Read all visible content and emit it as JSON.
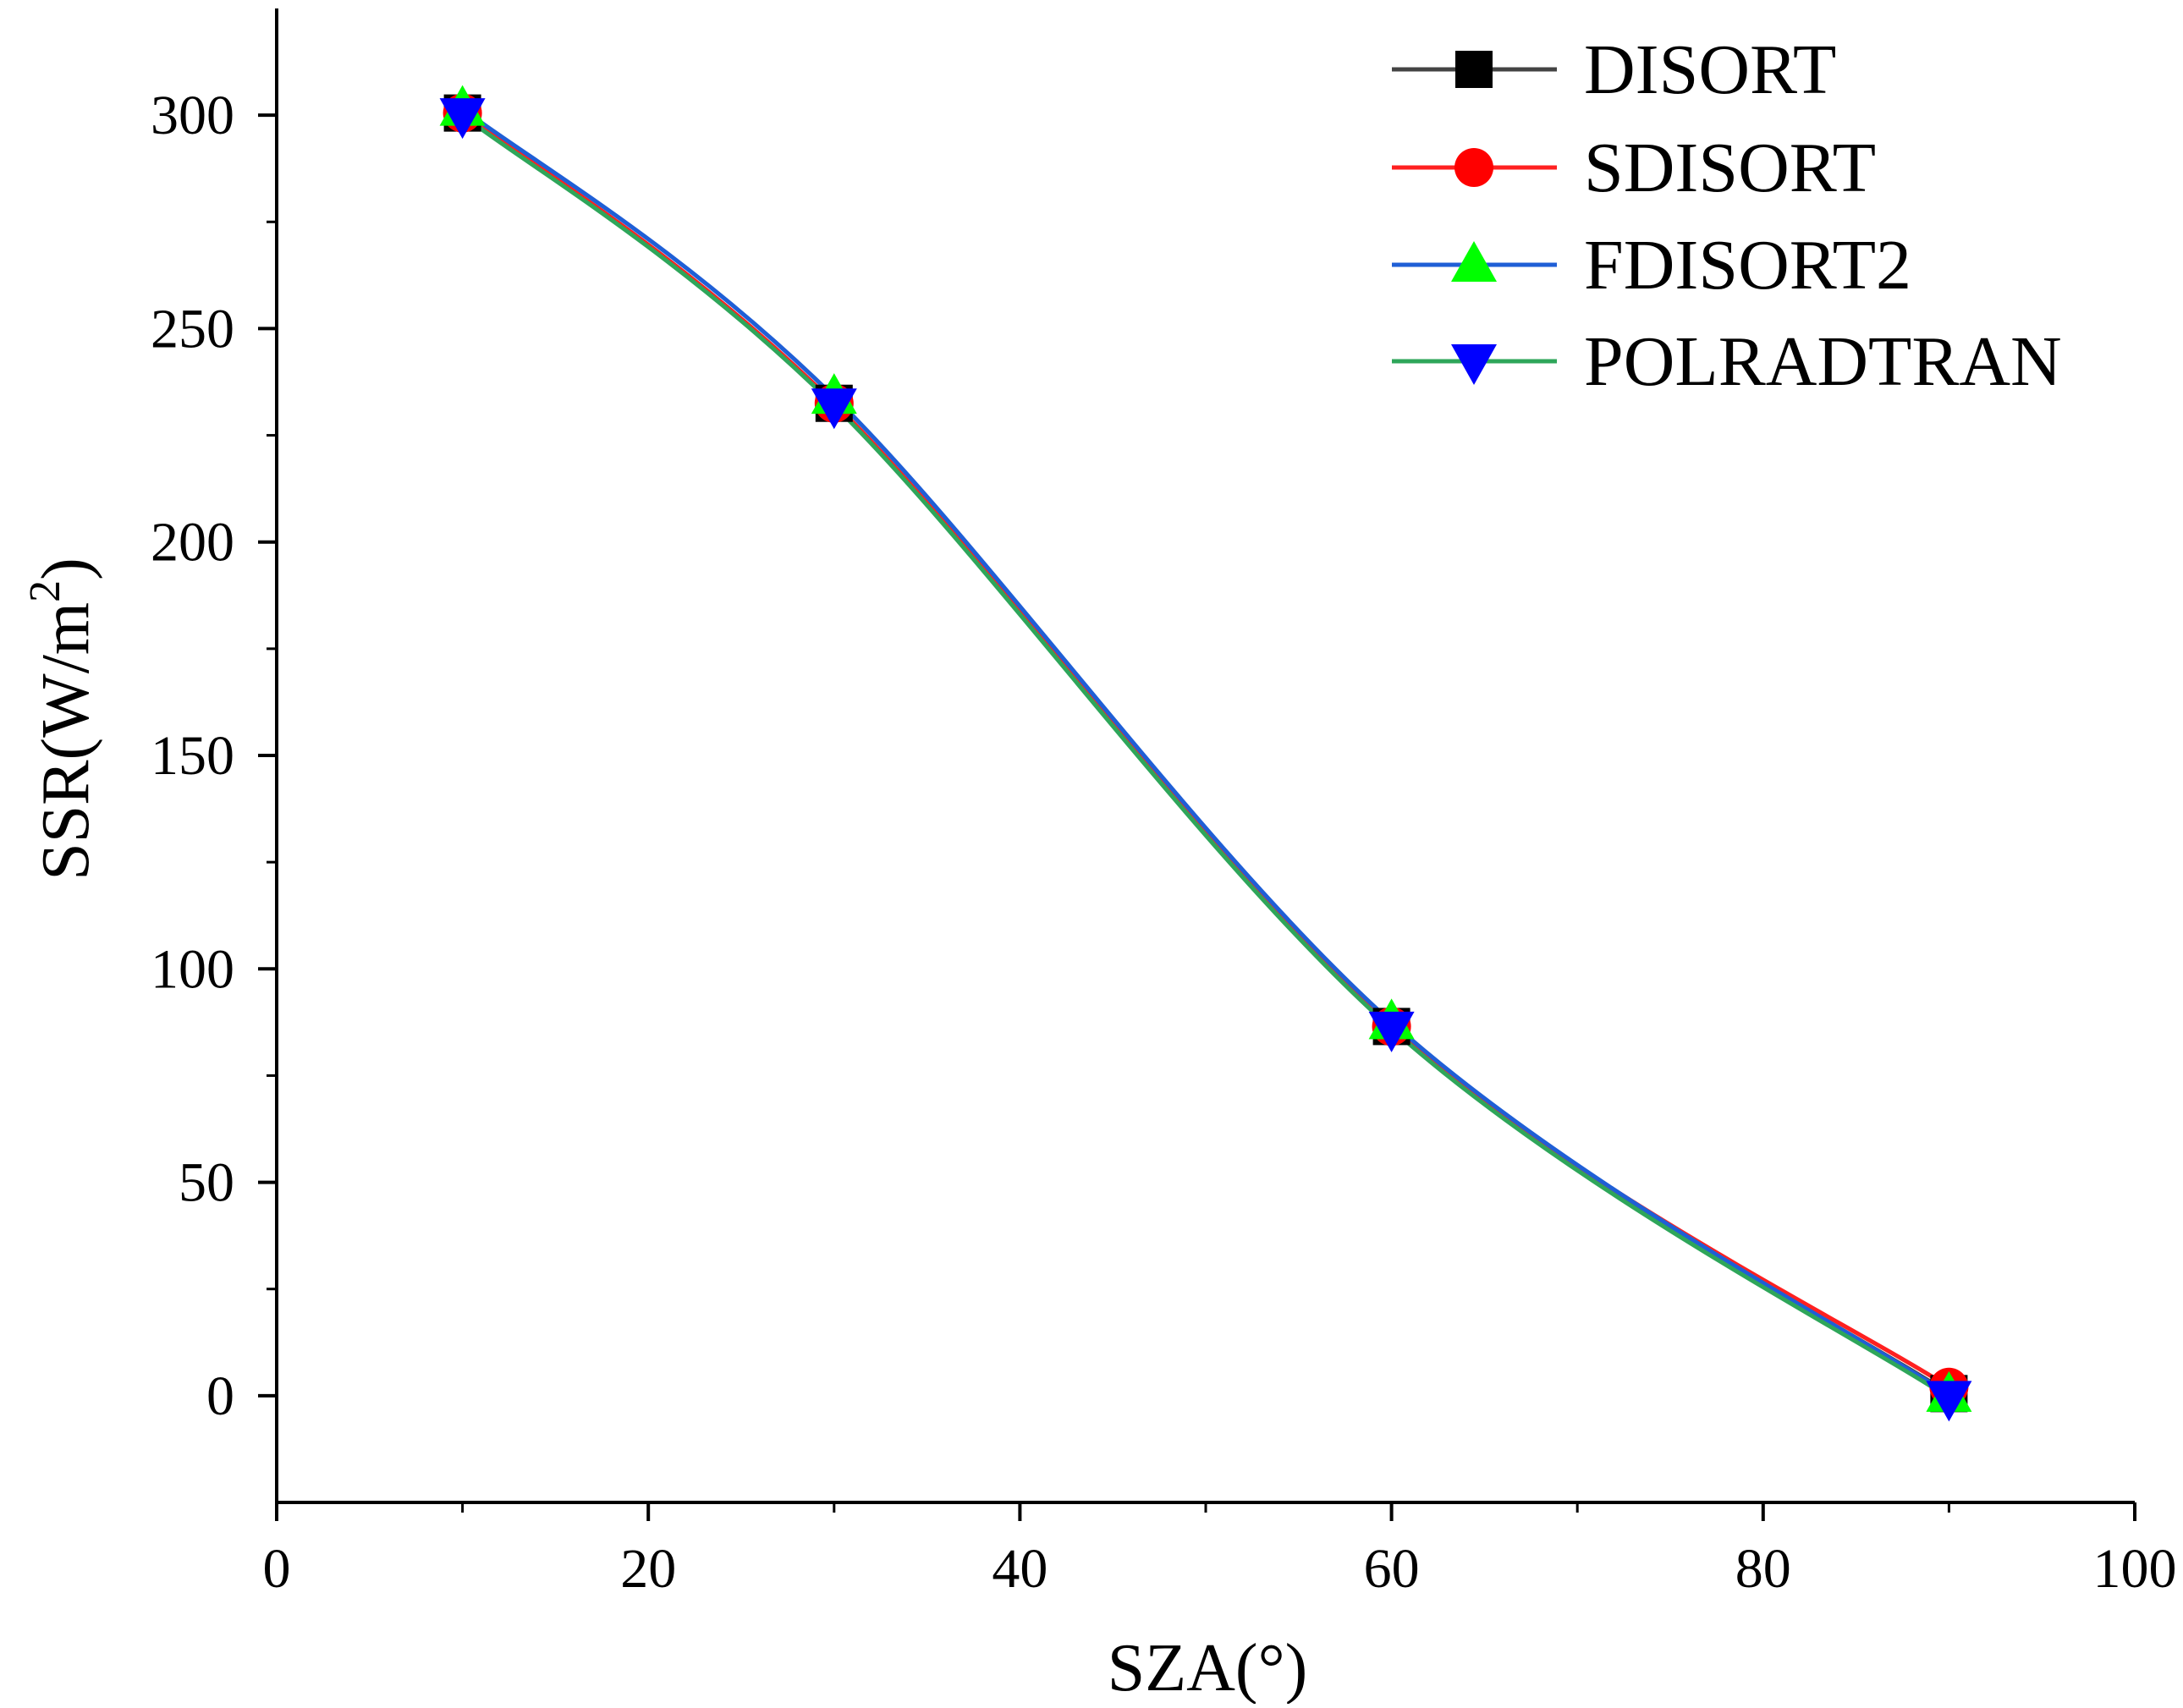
{
  "chart_data": {
    "type": "line",
    "xlabel": "SZA(°)",
    "ylabel_main": "SSR(W/m",
    "ylabel_sup": "2",
    "ylabel_close": ")",
    "xlim": [
      0,
      100
    ],
    "ylim": [
      -25,
      325
    ],
    "xticks": [
      0,
      20,
      40,
      60,
      80,
      100
    ],
    "yticks": [
      0,
      50,
      100,
      150,
      200,
      250,
      300
    ],
    "grid": false,
    "legend_position": "top-right",
    "series": [
      {
        "name": "DISORT",
        "x": [
          10,
          30,
          60,
          90
        ],
        "y": [
          300.5,
          232.5,
          86.5,
          0.5
        ],
        "line_color": "#444444",
        "marker_color": "#000000",
        "marker": "square"
      },
      {
        "name": "SDISORT",
        "x": [
          10,
          30,
          60,
          90
        ],
        "y": [
          300.5,
          232.5,
          86.5,
          2.0
        ],
        "line_color": "#ff2020",
        "marker_color": "#ff0000",
        "marker": "circle"
      },
      {
        "name": "FDISORT2",
        "x": [
          10,
          30,
          60,
          90
        ],
        "y": [
          301.5,
          234.0,
          87.5,
          0.2
        ],
        "line_color": "#1f5fd6",
        "marker_color": "#00ff00",
        "marker": "triangle-up"
      },
      {
        "name": "POLRADTRAN",
        "x": [
          10,
          30,
          60,
          90
        ],
        "y": [
          300.0,
          232.0,
          86.0,
          -0.5
        ],
        "line_color": "#2ea65a",
        "marker_color": "#0000ff",
        "marker": "triangle-down"
      }
    ]
  }
}
